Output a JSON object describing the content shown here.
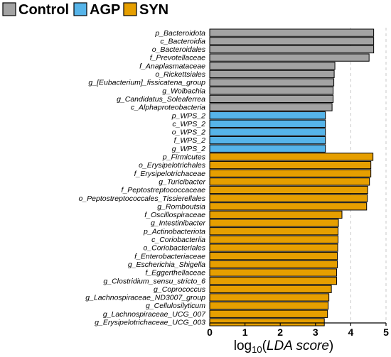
{
  "chart_data": {
    "type": "bar",
    "orientation": "horizontal",
    "legend": [
      {
        "name": "Control",
        "color": "#a3a3a3"
      },
      {
        "name": "AGP",
        "color": "#56b4e9"
      },
      {
        "name": "SYN",
        "color": "#e69f00"
      }
    ],
    "legend_position": "top-left",
    "xlabel": {
      "prefix": "log",
      "sub": "10",
      "open": "(",
      "italic": "LDA score",
      "close": ")"
    },
    "xlim": [
      0,
      5
    ],
    "xticks": [
      "0",
      "1",
      "2",
      "3",
      "4",
      "5"
    ],
    "grid": "dashed vertical at 4 and 5",
    "bars": [
      {
        "label": "p_Bacteroidota",
        "value": 4.65,
        "group": "Control"
      },
      {
        "label": "c_Bacteroidia",
        "value": 4.65,
        "group": "Control"
      },
      {
        "label": "o_Bacteroidales",
        "value": 4.65,
        "group": "Control"
      },
      {
        "label": "f_Prevotellaceae",
        "value": 4.52,
        "group": "Control"
      },
      {
        "label": "f_Anaplasmataceae",
        "value": 3.55,
        "group": "Control"
      },
      {
        "label": "o_Rickettsiales",
        "value": 3.53,
        "group": "Control"
      },
      {
        "label": "g_[Eubacterium]_fissicatena_group",
        "value": 3.52,
        "group": "Control"
      },
      {
        "label": "g_Wolbachia",
        "value": 3.5,
        "group": "Control"
      },
      {
        "label": "g_Candidatus_Soleaferrea",
        "value": 3.5,
        "group": "Control"
      },
      {
        "label": "c_Alphaproteobacteria",
        "value": 3.47,
        "group": "Control"
      },
      {
        "label": "p_WPS_2",
        "value": 3.28,
        "group": "AGP"
      },
      {
        "label": "c_WPS_2",
        "value": 3.28,
        "group": "AGP"
      },
      {
        "label": "o_WPS_2",
        "value": 3.28,
        "group": "AGP"
      },
      {
        "label": "f_WPS_2",
        "value": 3.28,
        "group": "AGP"
      },
      {
        "label": "g_WPS_2",
        "value": 3.28,
        "group": "AGP"
      },
      {
        "label": "p_Firmicutes",
        "value": 4.63,
        "group": "SYN"
      },
      {
        "label": "o_Erysipelotrichales",
        "value": 4.57,
        "group": "SYN"
      },
      {
        "label": "f_Erysipelotrichaceae",
        "value": 4.57,
        "group": "SYN"
      },
      {
        "label": "g_Turicibacter",
        "value": 4.53,
        "group": "SYN"
      },
      {
        "label": "f_Peptostreptococcaceae",
        "value": 4.48,
        "group": "SYN"
      },
      {
        "label": "o_Peptostreptococcales_Tissierellales",
        "value": 4.47,
        "group": "SYN"
      },
      {
        "label": "g_Romboutsia",
        "value": 4.45,
        "group": "SYN"
      },
      {
        "label": "f_Oscillospiraceae",
        "value": 3.75,
        "group": "SYN"
      },
      {
        "label": "g_Intestinibacter",
        "value": 3.65,
        "group": "SYN"
      },
      {
        "label": "p_Actinobacteriota",
        "value": 3.64,
        "group": "SYN"
      },
      {
        "label": "c_Coriobacteriia",
        "value": 3.64,
        "group": "SYN"
      },
      {
        "label": "o_Coriobacteriales",
        "value": 3.63,
        "group": "SYN"
      },
      {
        "label": "f_Enterobacteriaceae",
        "value": 3.62,
        "group": "SYN"
      },
      {
        "label": "g_Escherichia_Shigella",
        "value": 3.62,
        "group": "SYN"
      },
      {
        "label": "f_Eggerthellaceae",
        "value": 3.6,
        "group": "SYN"
      },
      {
        "label": "g_Clostridium_sensu_stricto_6",
        "value": 3.6,
        "group": "SYN"
      },
      {
        "label": "g_Coprococcus",
        "value": 3.45,
        "group": "SYN"
      },
      {
        "label": "g_Lachnospiraceae_ND3007_group",
        "value": 3.38,
        "group": "SYN"
      },
      {
        "label": "g_Cellulosilyticum",
        "value": 3.36,
        "group": "SYN"
      },
      {
        "label": "g_Lachnospiraceae_UCG_007",
        "value": 3.34,
        "group": "SYN"
      },
      {
        "label": "g_Erysipelotrichaceae_UCG_003",
        "value": 3.25,
        "group": "SYN"
      }
    ]
  }
}
